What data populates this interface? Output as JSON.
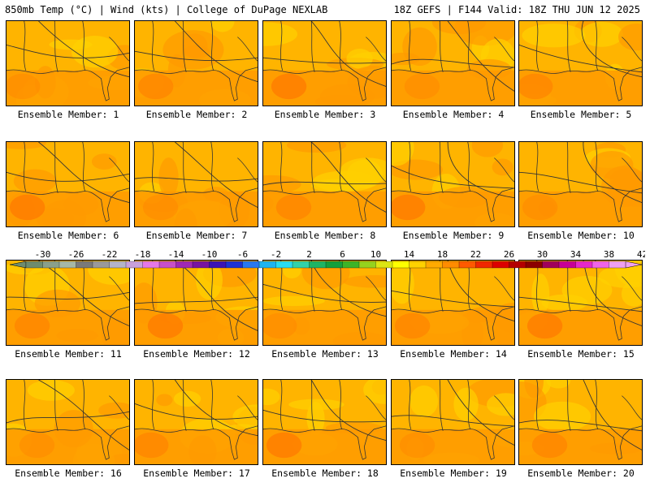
{
  "header": {
    "left": "850mb Temp (°C) | Wind (kts) | College of DuPage NEXLAB",
    "right": "18Z GEFS | F144 Valid: 18Z THU JUN 12 2025"
  },
  "members": [
    "Ensemble Member: 1",
    "Ensemble Member: 2",
    "Ensemble Member: 3",
    "Ensemble Member: 4",
    "Ensemble Member: 5",
    "Ensemble Member: 6",
    "Ensemble Member: 7",
    "Ensemble Member: 8",
    "Ensemble Member: 9",
    "Ensemble Member: 10",
    "Ensemble Member: 11",
    "Ensemble Member: 12",
    "Ensemble Member: 13",
    "Ensemble Member: 14",
    "Ensemble Member: 15",
    "Ensemble Member: 16",
    "Ensemble Member: 17",
    "Ensemble Member: 18",
    "Ensemble Member: 19",
    "Ensemble Member: 20"
  ],
  "colorbar": {
    "labels": [
      "-30",
      "-26",
      "-22",
      "-18",
      "-14",
      "-10",
      "-6",
      "-2",
      "2",
      "6",
      "10",
      "14",
      "18",
      "22",
      "26",
      "30",
      "34",
      "38",
      "42"
    ],
    "colors": [
      "#6e8c6e",
      "#8aa08a",
      "#a6b8a6",
      "#7a7a7a",
      "#9a9a9a",
      "#b4b4c8",
      "#c8a0dc",
      "#e678e6",
      "#c850c8",
      "#a028b4",
      "#7814a0",
      "#3c14b4",
      "#1e32d2",
      "#2878f0",
      "#1eb4f0",
      "#28dcf0",
      "#32d2aa",
      "#1eb464",
      "#14a03c",
      "#3cb428",
      "#96d21e",
      "#dce614",
      "#ffff00",
      "#ffd200",
      "#ffaa00",
      "#ff8c00",
      "#ff5a00",
      "#f02800",
      "#dc0000",
      "#b40000",
      "#8c0000",
      "#a0005a",
      "#c80096",
      "#e628c8",
      "#f064e6",
      "#f0a0f0"
    ],
    "plot_colors": {
      "low": "#ff9a00",
      "mid": "#ffb400",
      "high": "#ffd000",
      "hot": "#ff7800",
      "line": "#333333"
    }
  }
}
